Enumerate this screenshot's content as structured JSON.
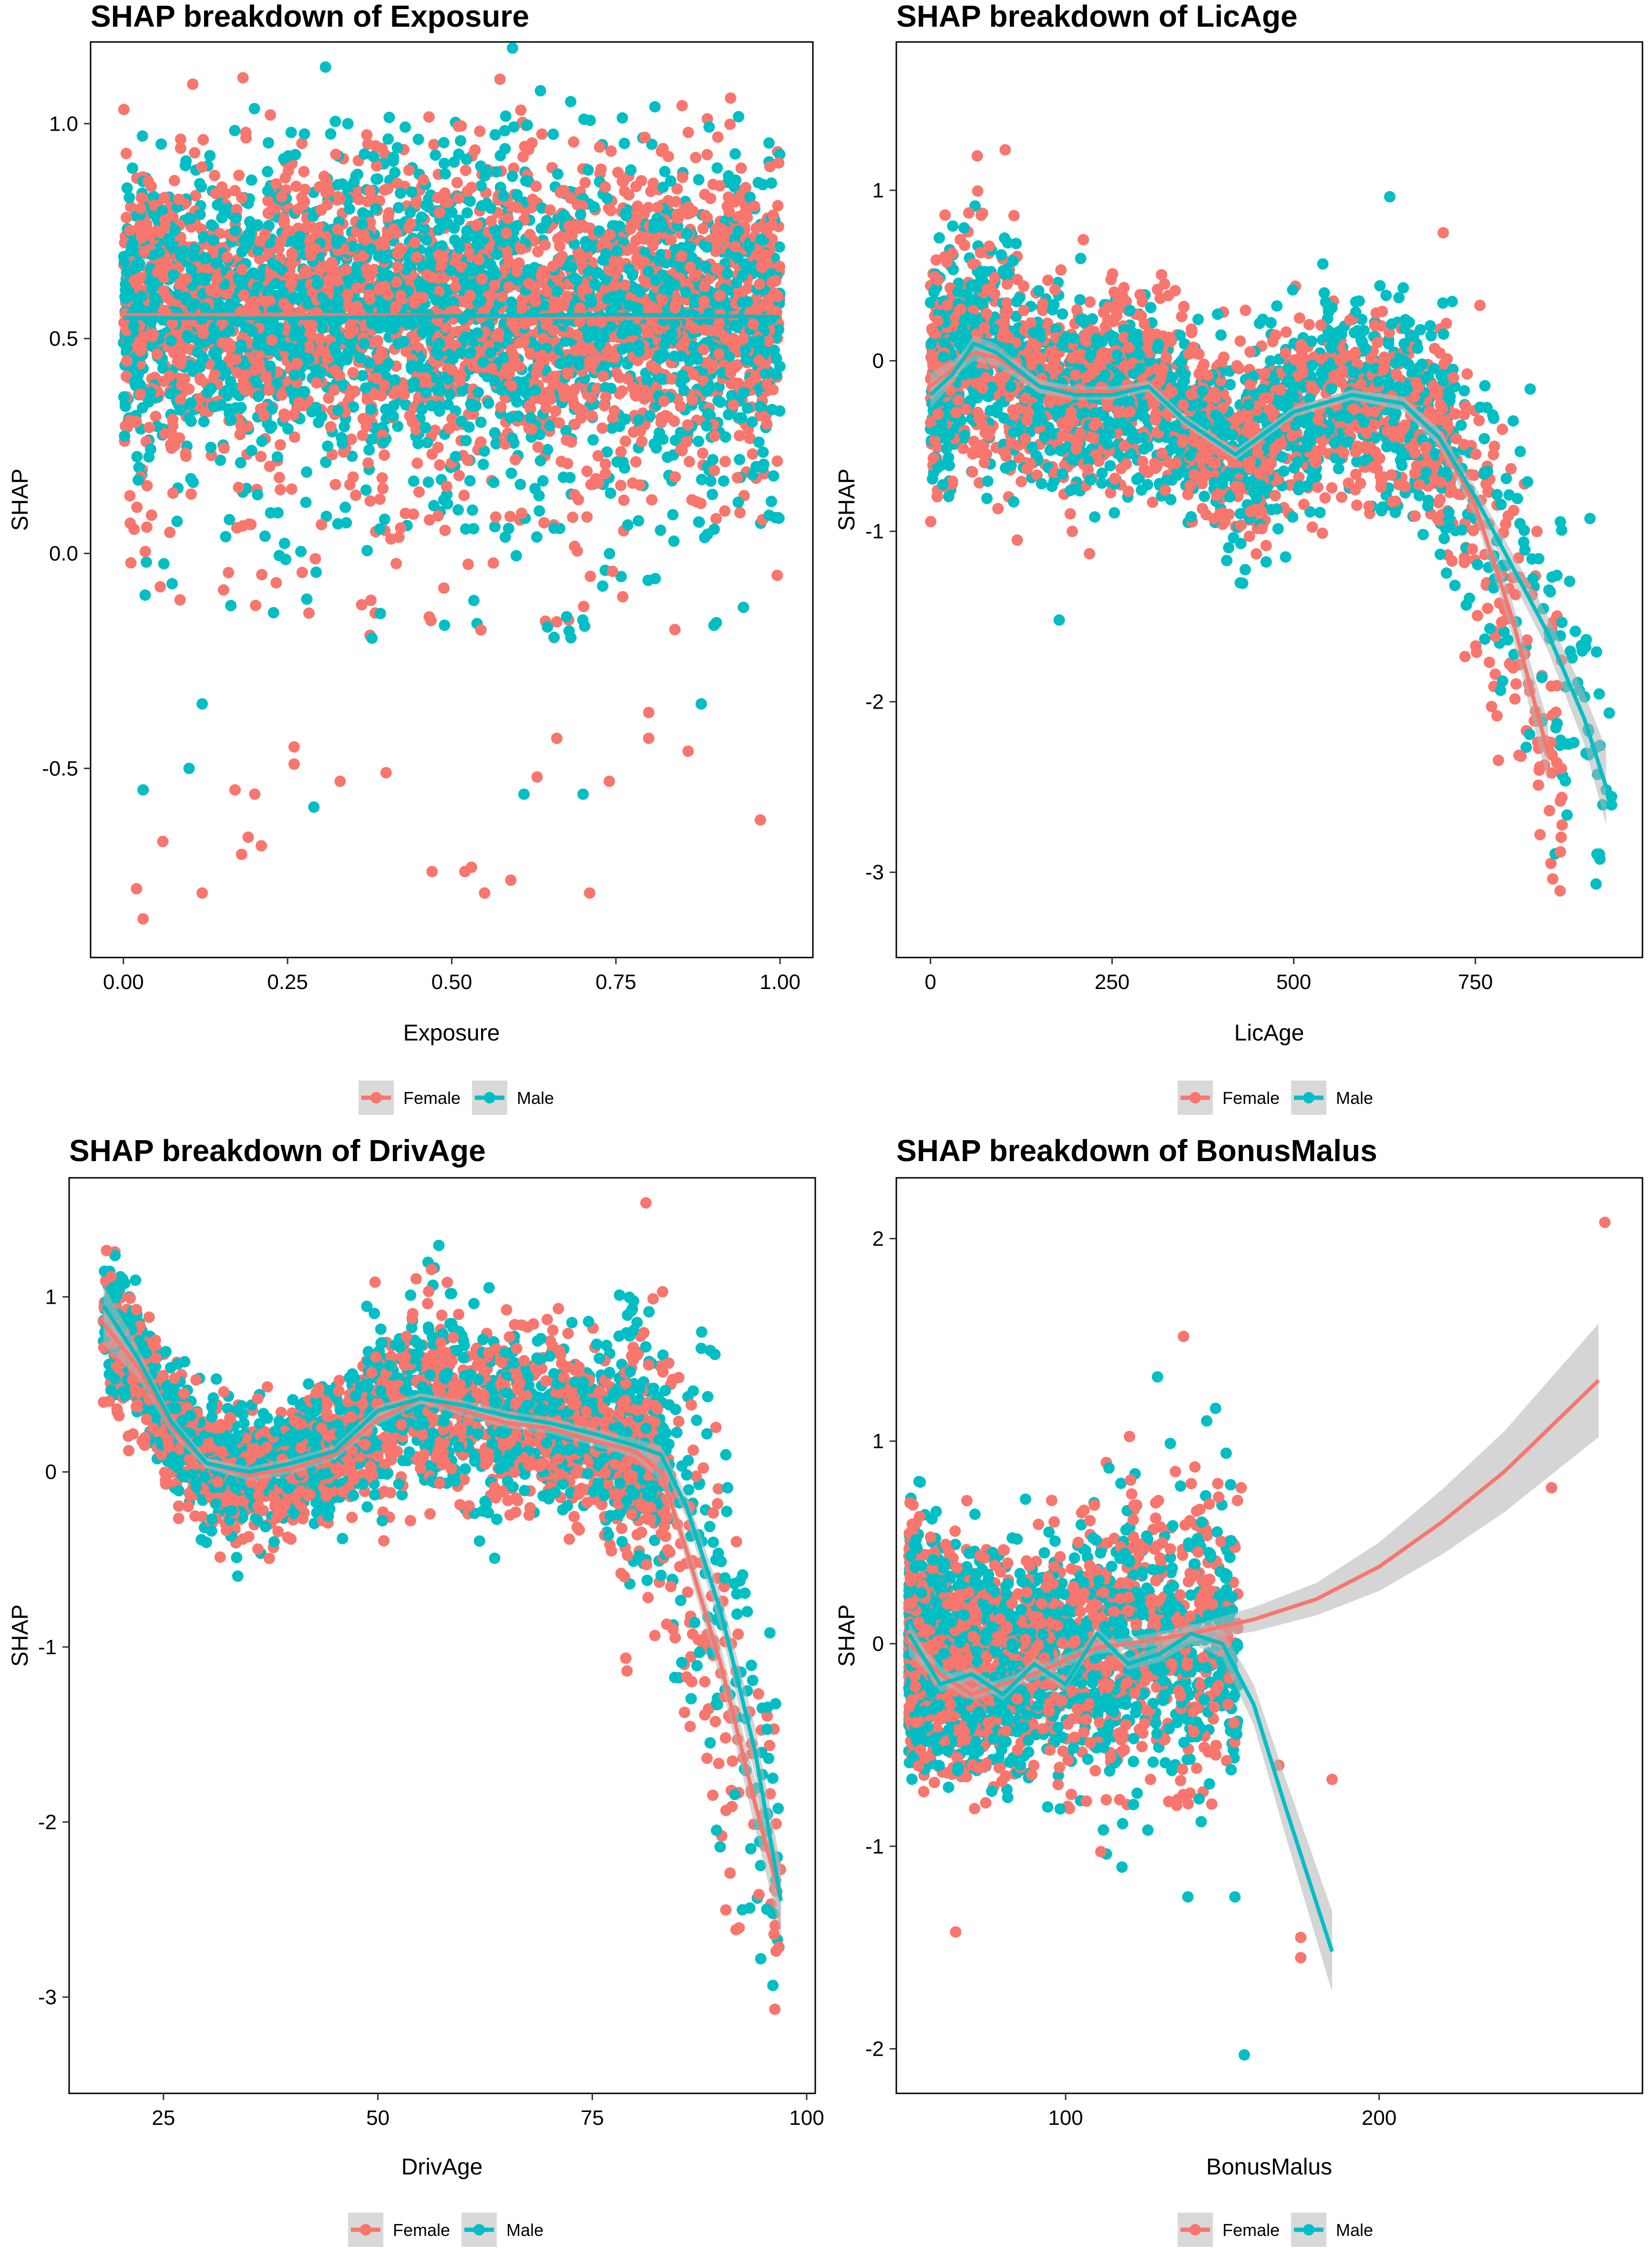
{
  "colors": {
    "female": "#F8766D",
    "male": "#00BFC4",
    "band": "#B3B3B3",
    "legend_key_bg": "#D9D9D9"
  },
  "legend_labels": [
    "Female",
    "Male"
  ],
  "chart_data": [
    {
      "type": "scatter",
      "title": "SHAP breakdown of Exposure",
      "xlabel": "Exposure",
      "ylabel": "SHAP",
      "xlim": [
        -0.05,
        1.05
      ],
      "ylim": [
        -0.94,
        1.19
      ],
      "x_ticks": [
        0.0,
        0.25,
        0.5,
        0.75,
        1.0
      ],
      "x_tick_labels": [
        "0.00",
        "0.25",
        "0.50",
        "0.75",
        "1.00"
      ],
      "y_ticks": [
        -0.5,
        0.0,
        0.5,
        1.0
      ],
      "y_tick_labels": [
        "-0.5",
        "0.0",
        "0.5",
        "1.0"
      ],
      "grid": false,
      "legend_position": "bottom",
      "cloud": {
        "x_range": [
          0,
          1
        ],
        "band_center": 0.57,
        "band_spread": 0.17,
        "outlier_range": [
          0.05,
          0.35
        ]
      },
      "series": [
        {
          "name": "Female",
          "outliers": [
            [
              0.02,
              -0.78
            ],
            [
              0.03,
              -0.85
            ],
            [
              0.06,
              -0.67
            ],
            [
              0.12,
              -0.79
            ],
            [
              0.17,
              -0.55
            ],
            [
              0.18,
              -0.7
            ],
            [
              0.19,
              -0.66
            ],
            [
              0.2,
              -0.56
            ],
            [
              0.21,
              -0.68
            ],
            [
              0.26,
              -0.45
            ],
            [
              0.26,
              -0.49
            ],
            [
              0.33,
              -0.53
            ],
            [
              0.4,
              -0.51
            ],
            [
              0.47,
              -0.74
            ],
            [
              0.52,
              -0.74
            ],
            [
              0.53,
              -0.73
            ],
            [
              0.55,
              -0.79
            ],
            [
              0.59,
              -0.76
            ],
            [
              0.63,
              -0.52
            ],
            [
              0.66,
              -0.43
            ],
            [
              0.71,
              -0.79
            ],
            [
              0.74,
              -0.53
            ],
            [
              0.8,
              -0.37
            ],
            [
              0.8,
              -0.43
            ],
            [
              0.86,
              -0.46
            ],
            [
              0.97,
              -0.62
            ]
          ],
          "smooth": [
            [
              0.0,
              0.555
            ],
            [
              0.25,
              0.556
            ],
            [
              0.5,
              0.552
            ],
            [
              0.75,
              0.548
            ],
            [
              1.0,
              0.553
            ]
          ]
        },
        {
          "name": "Male",
          "outliers": [
            [
              0.03,
              -0.55
            ],
            [
              0.1,
              -0.5
            ],
            [
              0.12,
              -0.35
            ],
            [
              0.29,
              -0.59
            ],
            [
              0.61,
              -0.56
            ],
            [
              0.7,
              -0.56
            ],
            [
              0.88,
              -0.35
            ]
          ],
          "smooth": [
            [
              0.0,
              0.548
            ],
            [
              0.25,
              0.547
            ],
            [
              0.5,
              0.552
            ],
            [
              0.75,
              0.556
            ],
            [
              1.0,
              0.55
            ]
          ]
        }
      ]
    },
    {
      "type": "scatter",
      "title": "SHAP breakdown of LicAge",
      "xlabel": "LicAge",
      "ylabel": "SHAP",
      "xlim": [
        -47,
        980
      ],
      "ylim": [
        -3.5,
        1.87
      ],
      "x_ticks": [
        0,
        250,
        500,
        750
      ],
      "x_tick_labels": [
        "0",
        "250",
        "500",
        "750"
      ],
      "y_ticks": [
        -3,
        -2,
        -1,
        0,
        1
      ],
      "y_tick_labels": [
        "-3",
        "-2",
        "-1",
        "0",
        "1"
      ],
      "grid": false,
      "legend_position": "bottom",
      "series": [
        {
          "name": "Female",
          "smooth": [
            [
              0,
              -0.15
            ],
            [
              30,
              -0.05
            ],
            [
              60,
              0.05
            ],
            [
              90,
              0.02
            ],
            [
              150,
              -0.15
            ],
            [
              200,
              -0.18
            ],
            [
              250,
              -0.18
            ],
            [
              300,
              -0.15
            ],
            [
              350,
              -0.35
            ],
            [
              420,
              -0.55
            ],
            [
              500,
              -0.3
            ],
            [
              580,
              -0.2
            ],
            [
              650,
              -0.25
            ],
            [
              700,
              -0.45
            ],
            [
              750,
              -0.85
            ],
            [
              800,
              -1.5
            ],
            [
              850,
              -2.3
            ]
          ],
          "band_width": [
            0.08,
            0.05,
            0.05,
            0.05,
            0.04,
            0.03,
            0.03,
            0.03,
            0.03,
            0.03,
            0.03,
            0.03,
            0.04,
            0.05,
            0.07,
            0.1,
            0.18
          ]
        },
        {
          "name": "Male",
          "smooth": [
            [
              0,
              -0.2
            ],
            [
              30,
              -0.08
            ],
            [
              60,
              0.1
            ],
            [
              90,
              0.05
            ],
            [
              150,
              -0.15
            ],
            [
              200,
              -0.2
            ],
            [
              250,
              -0.2
            ],
            [
              300,
              -0.15
            ],
            [
              350,
              -0.35
            ],
            [
              420,
              -0.55
            ],
            [
              500,
              -0.3
            ],
            [
              580,
              -0.2
            ],
            [
              650,
              -0.25
            ],
            [
              700,
              -0.45
            ],
            [
              750,
              -0.8
            ],
            [
              800,
              -1.2
            ],
            [
              850,
              -1.6
            ],
            [
              900,
              -2.1
            ],
            [
              930,
              -2.5
            ]
          ],
          "band_width": [
            0.08,
            0.05,
            0.05,
            0.05,
            0.04,
            0.03,
            0.03,
            0.03,
            0.03,
            0.03,
            0.03,
            0.03,
            0.04,
            0.05,
            0.06,
            0.08,
            0.1,
            0.15,
            0.22
          ]
        }
      ]
    },
    {
      "type": "scatter",
      "title": "SHAP breakdown of DrivAge",
      "xlabel": "DrivAge",
      "ylabel": "SHAP",
      "xlim": [
        14,
        101
      ],
      "ylim": [
        -3.55,
        1.68
      ],
      "x_ticks": [
        25,
        50,
        75,
        100
      ],
      "x_tick_labels": [
        "25",
        "50",
        "75",
        "100"
      ],
      "y_ticks": [
        -3,
        -2,
        -1,
        0,
        1
      ],
      "y_tick_labels": [
        "-3",
        "-2",
        "-1",
        "0",
        "1"
      ],
      "grid": false,
      "legend_position": "bottom",
      "series": [
        {
          "name": "Female",
          "smooth": [
            [
              18,
              0.85
            ],
            [
              22,
              0.6
            ],
            [
              26,
              0.25
            ],
            [
              30,
              0.05
            ],
            [
              35,
              -0.02
            ],
            [
              40,
              0.02
            ],
            [
              45,
              0.1
            ],
            [
              50,
              0.3
            ],
            [
              55,
              0.42
            ],
            [
              60,
              0.35
            ],
            [
              65,
              0.28
            ],
            [
              70,
              0.25
            ],
            [
              75,
              0.18
            ],
            [
              80,
              0.12
            ],
            [
              83,
              0.0
            ],
            [
              86,
              -0.45
            ],
            [
              90,
              -1.1
            ],
            [
              94,
              -1.9
            ],
            [
              97,
              -2.45
            ]
          ],
          "band_width": [
            0.12,
            0.06,
            0.04,
            0.03,
            0.03,
            0.03,
            0.03,
            0.03,
            0.03,
            0.03,
            0.03,
            0.03,
            0.03,
            0.04,
            0.05,
            0.07,
            0.1,
            0.14,
            0.2
          ]
        },
        {
          "name": "Male",
          "smooth": [
            [
              18,
              0.95
            ],
            [
              22,
              0.65
            ],
            [
              26,
              0.28
            ],
            [
              30,
              0.05
            ],
            [
              35,
              0.0
            ],
            [
              40,
              0.05
            ],
            [
              45,
              0.12
            ],
            [
              50,
              0.35
            ],
            [
              55,
              0.42
            ],
            [
              60,
              0.38
            ],
            [
              65,
              0.32
            ],
            [
              70,
              0.28
            ],
            [
              75,
              0.22
            ],
            [
              80,
              0.15
            ],
            [
              83,
              0.1
            ],
            [
              86,
              -0.2
            ],
            [
              90,
              -0.8
            ],
            [
              94,
              -1.6
            ],
            [
              97,
              -2.45
            ]
          ],
          "band_width": [
            0.12,
            0.06,
            0.04,
            0.03,
            0.03,
            0.03,
            0.03,
            0.03,
            0.03,
            0.03,
            0.03,
            0.03,
            0.03,
            0.04,
            0.05,
            0.07,
            0.1,
            0.14,
            0.2
          ]
        }
      ]
    },
    {
      "type": "scatter",
      "title": "SHAP breakdown of BonusMalus",
      "xlabel": "BonusMalus",
      "ylabel": "SHAP",
      "xlim": [
        46,
        284
      ],
      "ylim": [
        -2.22,
        2.3
      ],
      "x_ticks": [
        100,
        200
      ],
      "x_tick_labels": [
        "100",
        "200"
      ],
      "y_ticks": [
        -2,
        -1,
        0,
        1,
        2
      ],
      "y_tick_labels": [
        "-2",
        "-1",
        "0",
        "1",
        "2"
      ],
      "grid": false,
      "legend_position": "bottom",
      "series": [
        {
          "name": "Female",
          "outliers": [
            [
              156,
              0.77
            ],
            [
              168,
              -0.6
            ],
            [
              175,
              -1.45
            ],
            [
              175,
              -1.55
            ],
            [
              185,
              -0.67
            ],
            [
              255,
              0.77
            ],
            [
              272,
              2.08
            ]
          ],
          "smooth": [
            [
              50,
              0.0
            ],
            [
              60,
              -0.15
            ],
            [
              70,
              -0.25
            ],
            [
              80,
              -0.2
            ],
            [
              90,
              -0.15
            ],
            [
              100,
              -0.08
            ],
            [
              110,
              -0.02
            ],
            [
              120,
              0.0
            ],
            [
              140,
              0.05
            ],
            [
              160,
              0.12
            ],
            [
              180,
              0.22
            ],
            [
              200,
              0.38
            ],
            [
              220,
              0.6
            ],
            [
              240,
              0.85
            ],
            [
              270,
              1.3
            ]
          ],
          "band_width": [
            0.06,
            0.04,
            0.03,
            0.03,
            0.03,
            0.03,
            0.03,
            0.03,
            0.04,
            0.06,
            0.08,
            0.12,
            0.16,
            0.2,
            0.28
          ]
        },
        {
          "name": "Male",
          "outliers": [
            [
              157,
              -2.03
            ],
            [
              154,
              -1.25
            ],
            [
              145,
              1.1
            ],
            [
              139,
              -1.25
            ]
          ],
          "smooth": [
            [
              50,
              0.05
            ],
            [
              60,
              -0.2
            ],
            [
              70,
              -0.15
            ],
            [
              80,
              -0.25
            ],
            [
              90,
              -0.1
            ],
            [
              100,
              -0.2
            ],
            [
              110,
              0.05
            ],
            [
              120,
              -0.1
            ],
            [
              130,
              -0.05
            ],
            [
              140,
              0.05
            ],
            [
              150,
              0.0
            ],
            [
              160,
              -0.3
            ],
            [
              170,
              -0.8
            ],
            [
              185,
              -1.52
            ]
          ],
          "band_width": [
            0.06,
            0.04,
            0.03,
            0.03,
            0.03,
            0.03,
            0.03,
            0.03,
            0.04,
            0.05,
            0.07,
            0.1,
            0.14,
            0.2
          ]
        }
      ]
    }
  ]
}
